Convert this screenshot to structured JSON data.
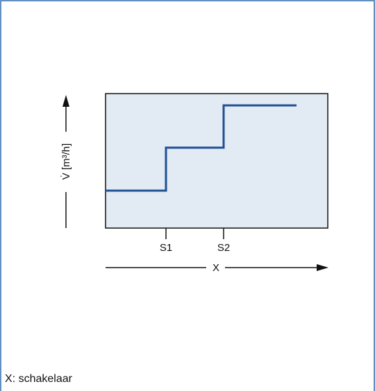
{
  "diagram": {
    "y_axis_label": "V̇ [m³/h]",
    "x_axis_label": "X",
    "switch_labels": [
      "S1",
      "S2"
    ],
    "switch_positions": [
      1,
      2
    ],
    "flow_levels": [
      1,
      2,
      3
    ],
    "colors": {
      "frame_border": "#2d6aad",
      "plot_fill": "#e2eaf3",
      "step_line": "#1f4f96",
      "axes": "#111111"
    }
  },
  "caption": "X: schakelaar"
}
